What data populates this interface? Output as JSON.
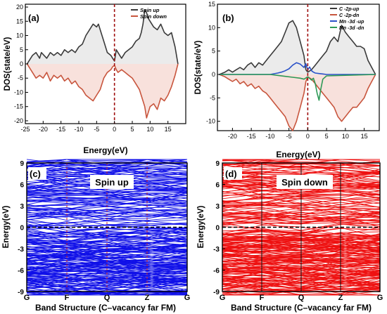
{
  "chart_data": [
    {
      "panel": "(a)",
      "type": "line",
      "xlabel": "Energy(eV)",
      "ylabel": "DOS(state/eV)",
      "xlim": [
        -25,
        20
      ],
      "ylim": [
        -21,
        21
      ],
      "xticks": [
        -25,
        -20,
        -15,
        -10,
        -5,
        0,
        5,
        10,
        15
      ],
      "yticks": [
        -20,
        -15,
        -10,
        -5,
        0,
        5,
        10,
        15,
        20
      ],
      "fermi_line": 0,
      "legend_position": "top-right",
      "series": [
        {
          "name": "Spin up",
          "color": "#3a3a3a",
          "x": [
            -24.5,
            -23,
            -22,
            -21,
            -20.5,
            -19,
            -18,
            -17,
            -16,
            -15,
            -14,
            -13,
            -12,
            -11,
            -10,
            -9,
            -8,
            -7,
            -6,
            -5,
            -4.5,
            -4,
            -3,
            -2,
            -1,
            -0.5,
            0,
            0.5,
            1,
            2,
            3,
            4,
            5,
            6,
            7,
            7.5,
            8,
            8.5,
            9,
            9.5,
            10,
            11,
            12,
            13,
            14,
            15,
            16,
            17,
            17.8
          ],
          "y": [
            0,
            3,
            4,
            2,
            4,
            2,
            4,
            3,
            4,
            3,
            5,
            4,
            5,
            4,
            6,
            7,
            10,
            12,
            14,
            13,
            14,
            12,
            8,
            4,
            3,
            2,
            1,
            5,
            4,
            2,
            4,
            5,
            6,
            8,
            9,
            11,
            14,
            19,
            18,
            16,
            15,
            13,
            12,
            14,
            11,
            10,
            11,
            6,
            0
          ]
        },
        {
          "name": "Spin down",
          "color": "#c8553d",
          "x": [
            -24.5,
            -23,
            -22,
            -21,
            -20,
            -19,
            -18,
            -17,
            -16,
            -15,
            -14,
            -13,
            -12,
            -11,
            -10,
            -9,
            -8,
            -7,
            -6,
            -5,
            -4,
            -3,
            -2,
            -1,
            -0.5,
            0,
            0.5,
            1,
            2,
            3,
            4,
            5,
            6,
            7,
            8,
            8.5,
            9,
            9.5,
            10,
            11,
            12,
            13,
            14,
            15,
            16,
            17,
            17.8
          ],
          "y": [
            0,
            -3,
            -5,
            -4,
            -5,
            -3,
            -6,
            -4,
            -5,
            -4,
            -6,
            -5,
            -7,
            -6,
            -8,
            -9,
            -11,
            -12,
            -13,
            -11,
            -9,
            -5,
            -3,
            -2,
            -1,
            -0.5,
            -2,
            -3,
            -2,
            -3,
            -4,
            -5,
            -7,
            -9,
            -13,
            -15,
            -19,
            -17,
            -15,
            -14,
            -16,
            -12,
            -13,
            -11,
            -8,
            -4,
            0
          ]
        }
      ]
    },
    {
      "panel": "(b)",
      "type": "line",
      "xlabel": "Energy(eV)",
      "ylabel": "DOS(state/eV)",
      "xlim": [
        -24,
        19
      ],
      "ylim": [
        -12,
        15
      ],
      "xticks": [
        -20,
        -15,
        -10,
        -5,
        0,
        5,
        10,
        15
      ],
      "yticks": [
        -10,
        -5,
        0,
        5,
        10,
        15
      ],
      "fermi_line": 0,
      "legend_position": "top-right",
      "series": [
        {
          "name": "C -2p-up",
          "color": "#3a3a3a",
          "x": [
            -23.5,
            -22,
            -21,
            -20,
            -19,
            -18,
            -17,
            -16,
            -15,
            -14,
            -13,
            -12,
            -11,
            -10,
            -9,
            -8,
            -7,
            -6,
            -5,
            -4,
            -3,
            -2,
            -1,
            -0.5,
            0,
            1,
            2,
            3,
            4,
            5,
            6,
            7,
            8,
            9,
            10,
            11,
            12,
            13,
            14,
            15,
            16,
            17,
            18
          ],
          "y": [
            0,
            0.5,
            1,
            0.5,
            1,
            1.5,
            1,
            2,
            2.5,
            1.5,
            2.5,
            2,
            3,
            4,
            5,
            6,
            7,
            9,
            11,
            11.5,
            10,
            7,
            4,
            1,
            0.5,
            1,
            2,
            3,
            4,
            5,
            7,
            8,
            7,
            10.5,
            9,
            8,
            7,
            6,
            6,
            5.5,
            3,
            1.5,
            0
          ]
        },
        {
          "name": "C -2p-dn",
          "color": "#c8553d",
          "x": [
            -23.5,
            -22,
            -21,
            -20,
            -19,
            -18,
            -17,
            -16,
            -15,
            -14,
            -13,
            -12,
            -11,
            -10,
            -9,
            -8,
            -7,
            -6,
            -5,
            -4,
            -3,
            -2,
            -1,
            -0.5,
            0,
            1,
            2,
            3,
            4,
            5,
            6,
            7,
            8,
            9,
            10,
            11,
            12,
            13,
            14,
            15,
            16,
            17,
            18
          ],
          "y": [
            0,
            -0.5,
            -1,
            -1.5,
            -1,
            -2,
            -1.5,
            -2.5,
            -2,
            -3,
            -2.5,
            -3.5,
            -4,
            -5,
            -6,
            -7,
            -8,
            -9,
            -11,
            -12,
            -10,
            -7,
            -4,
            -1.5,
            -0.5,
            -1,
            -2,
            -3,
            -4,
            -5,
            -6,
            -7,
            -9,
            -10,
            -9,
            -8,
            -7,
            -7,
            -6,
            -5,
            -3,
            -1.5,
            0
          ]
        },
        {
          "name": "Mn -3d -up",
          "color": "#2b52c8",
          "x": [
            -23.5,
            -10,
            -8,
            -7,
            -6,
            -5,
            -4,
            -3,
            -2,
            -1,
            -0.5,
            0,
            0.5,
            1,
            1.5,
            2,
            3,
            4,
            5,
            18
          ],
          "y": [
            0,
            0,
            0.3,
            0.5,
            0.8,
            1.2,
            2,
            2.5,
            2.2,
            1.5,
            2.3,
            1,
            1.6,
            0.8,
            0.5,
            0.3,
            0.2,
            0.1,
            0,
            0
          ]
        },
        {
          "name": "Mn -3d -dn",
          "color": "#2e9a57",
          "x": [
            -23.5,
            -10,
            -8,
            -6,
            -4,
            -2,
            -1,
            0,
            1,
            1.5,
            2,
            2.5,
            3,
            3.5,
            4,
            5,
            18
          ],
          "y": [
            0,
            0,
            -0.2,
            -0.4,
            -0.6,
            -0.8,
            -1,
            -0.5,
            -1.2,
            -0.8,
            -2,
            -4,
            -5.5,
            -3,
            -1,
            -0.3,
            0
          ]
        }
      ]
    },
    {
      "panel": "(c)",
      "type": "line",
      "xlabel": "Band Structure (C–vacancy far FM)",
      "ylabel": "Energy(eV)",
      "annotation": "Spin up",
      "color": "#1010e8",
      "kpoints": [
        "G",
        "F",
        "Q",
        "Z",
        "G"
      ],
      "ylim": [
        -9,
        9
      ],
      "yticks": [
        -9,
        -6,
        -3,
        0,
        3,
        6,
        9
      ],
      "fermi_line": 0
    },
    {
      "panel": "(d)",
      "type": "line",
      "xlabel": "Band Structure (C–vacancy far FM)",
      "ylabel": "Energy(eV)",
      "annotation": "Spin down",
      "color": "#ee1111",
      "kpoints": [
        "G",
        "F",
        "Q",
        "Z",
        "G"
      ],
      "ylim": [
        -9,
        9
      ],
      "yticks": [
        -9,
        -6,
        -3,
        0,
        3,
        6,
        9
      ],
      "fermi_line": 0
    }
  ]
}
